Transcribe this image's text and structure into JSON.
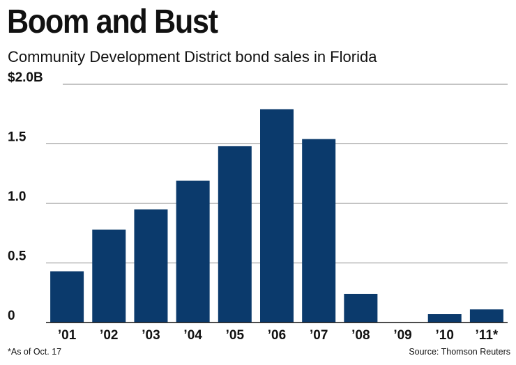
{
  "chart_data": {
    "type": "bar",
    "title": "Boom and Bust",
    "subtitle": "Community Development District bond sales in Florida",
    "categories": [
      "’01",
      "’02",
      "’03",
      "’04",
      "’05",
      "’06",
      "’07",
      "’08",
      "’09",
      "’10",
      "’11*"
    ],
    "values": [
      0.43,
      0.78,
      0.95,
      1.19,
      1.48,
      1.79,
      1.54,
      0.24,
      0.0,
      0.07,
      0.11
    ],
    "ylim": [
      0,
      2.0
    ],
    "yticks": [
      {
        "value": 0,
        "label": "0"
      },
      {
        "value": 0.5,
        "label": "0.5"
      },
      {
        "value": 1.0,
        "label": "1.0"
      },
      {
        "value": 1.5,
        "label": "1.5"
      },
      {
        "value": 2.0,
        "label": "$2.0B"
      }
    ],
    "grid": true,
    "bar_color": "#0b3a6c",
    "footnote": "*As of Oct. 17",
    "source": "Source: Thomson Reuters"
  }
}
